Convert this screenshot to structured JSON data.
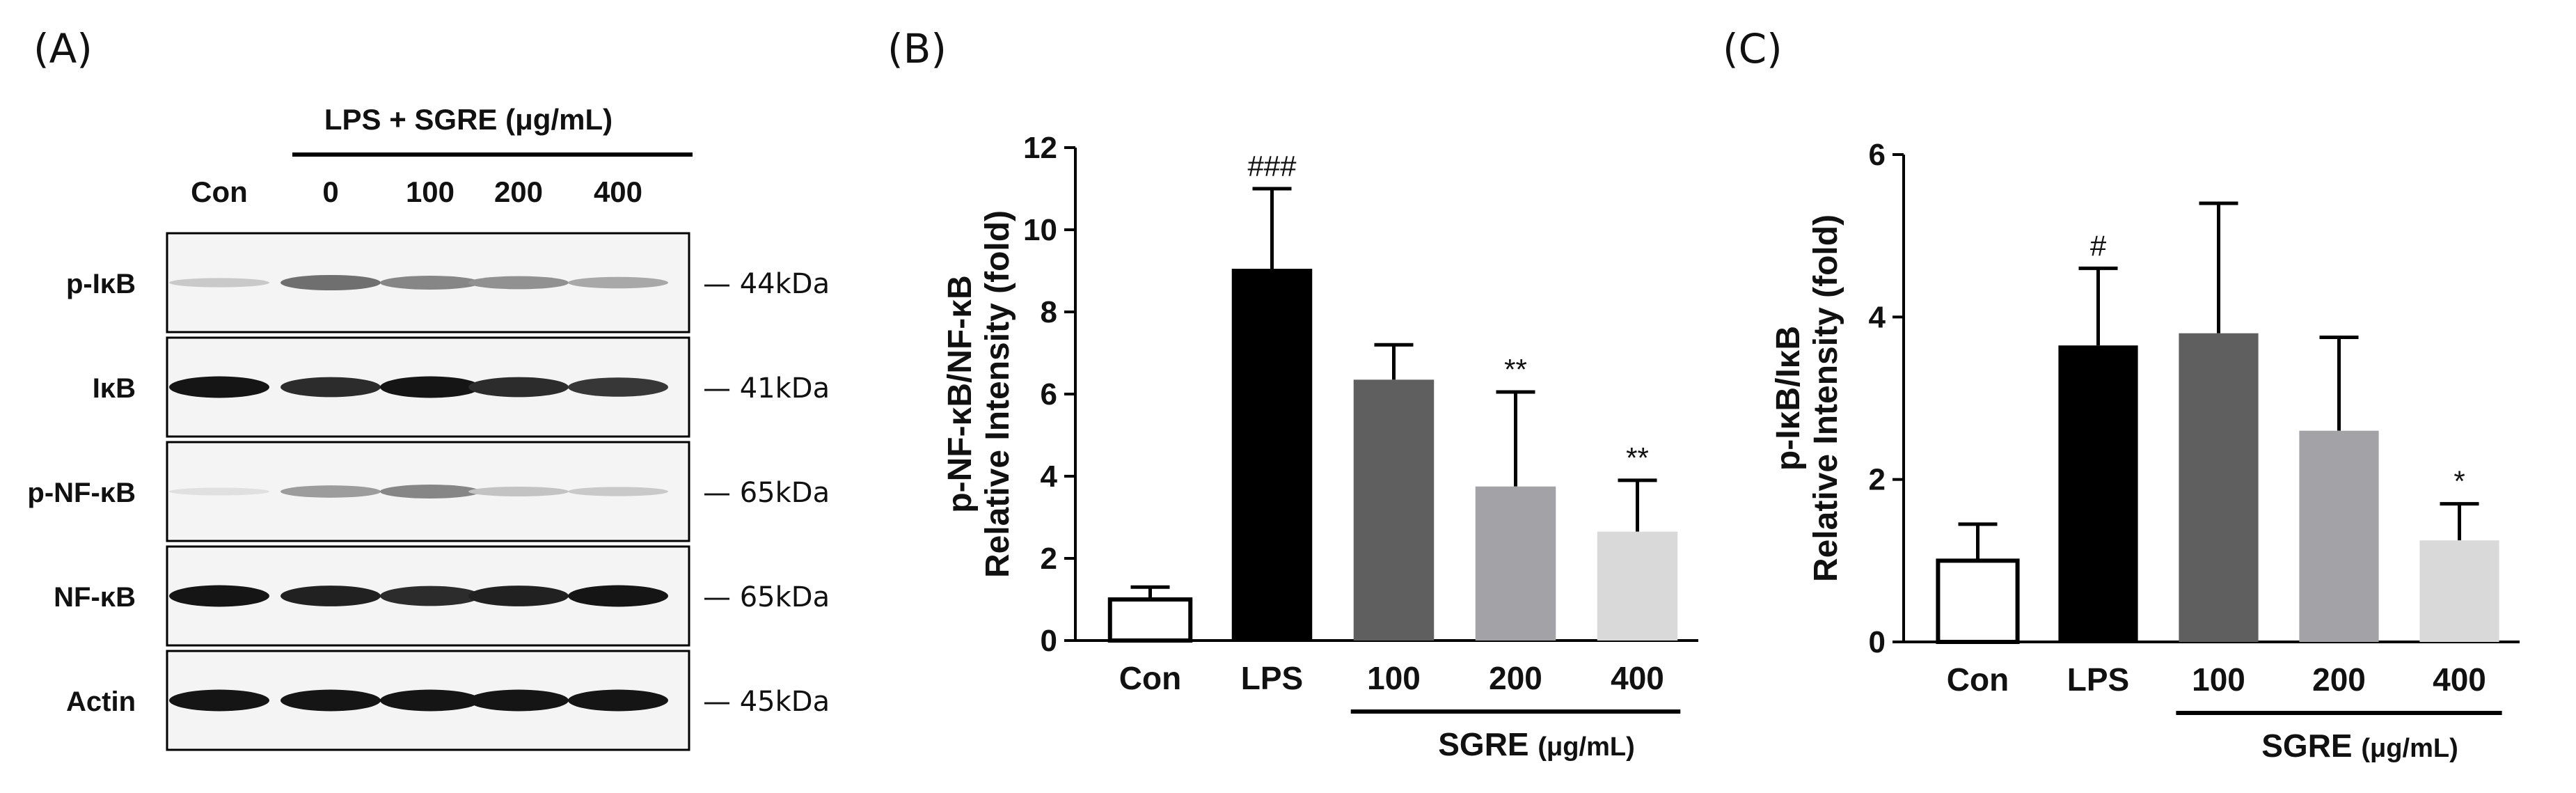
{
  "panel_labels": [
    "(A)",
    "(B)",
    "(C)"
  ],
  "blot": {
    "treatment_header": "LPS + SGRE (μg/mL)",
    "lanes": [
      "Con",
      "0",
      "100",
      "200",
      "400"
    ],
    "rows": [
      {
        "label": "p-IκB",
        "mw": "— 44kDa",
        "intensity": [
          0.15,
          0.55,
          0.45,
          0.4,
          0.3
        ]
      },
      {
        "label": "IκB",
        "mw": "— 41kDa",
        "intensity": [
          0.95,
          0.85,
          0.95,
          0.85,
          0.8
        ]
      },
      {
        "label": "p-NF-κB",
        "mw": "— 65kDa",
        "intensity": [
          0.05,
          0.35,
          0.45,
          0.18,
          0.15
        ]
      },
      {
        "label": "NF-κB",
        "mw": "— 65kDa",
        "intensity": [
          0.95,
          0.9,
          0.85,
          0.9,
          0.95
        ]
      },
      {
        "label": "Actin",
        "mw": "— 45kDa",
        "intensity": [
          0.95,
          0.95,
          0.95,
          0.95,
          0.95
        ]
      }
    ]
  },
  "chart_data": [
    {
      "type": "bar",
      "panel": "(B)",
      "ylabel_line1": "p-NF-κB/NF-κB",
      "ylabel_line2": "Relative Intensity (fold)",
      "categories": [
        "Con",
        "LPS",
        "100",
        "200",
        "400"
      ],
      "values": [
        1.0,
        9.05,
        6.35,
        3.75,
        2.65
      ],
      "errors": [
        0.3,
        1.95,
        0.85,
        2.3,
        1.25
      ],
      "significance": [
        "",
        "###",
        "",
        "**",
        "**"
      ],
      "colors": [
        "#ffffff",
        "#000000",
        "#5f5f5f",
        "#a3a3a7",
        "#d9d9d9"
      ],
      "ylim": [
        0,
        12
      ],
      "yticks": [
        "0",
        "2",
        "4",
        "6",
        "8",
        "10",
        "12"
      ],
      "group_label": "SGRE",
      "group_unit": "(μg/mL)"
    },
    {
      "type": "bar",
      "panel": "(C)",
      "ylabel_line1": "p-IκB/IκB",
      "ylabel_line2": "Relative Intensity (fold)",
      "categories": [
        "Con",
        "LPS",
        "100",
        "200",
        "400"
      ],
      "values": [
        1.0,
        3.65,
        3.8,
        2.6,
        1.25
      ],
      "errors": [
        0.45,
        0.95,
        1.6,
        1.15,
        0.45
      ],
      "significance": [
        "",
        "#",
        "",
        "",
        "*"
      ],
      "colors": [
        "#ffffff",
        "#000000",
        "#5f5f5f",
        "#a3a3a7",
        "#d9d9d9"
      ],
      "ylim": [
        0,
        6
      ],
      "yticks": [
        "0",
        "2",
        "4",
        "6"
      ],
      "group_label": "SGRE",
      "group_unit": "(μg/mL)"
    }
  ]
}
